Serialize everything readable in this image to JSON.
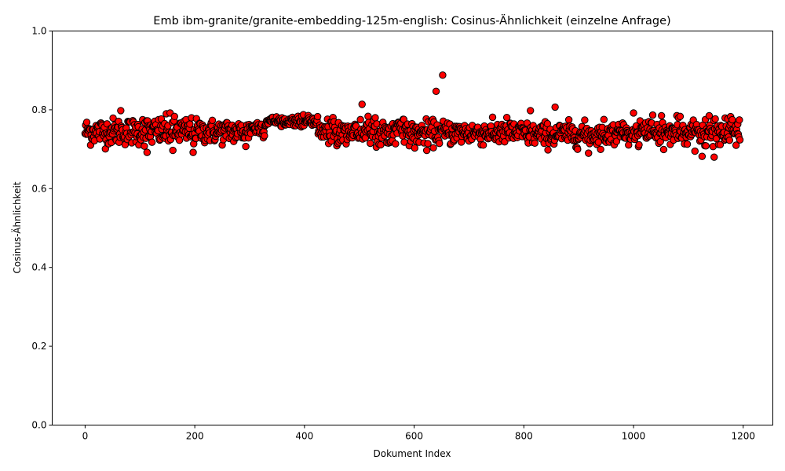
{
  "chart_data": {
    "type": "scatter",
    "title": "Emb ibm-granite/granite-embedding-125m-english: Cosinus-Ähnlichkeit (einzelne Anfrage)",
    "xlabel": "Dokument Index",
    "ylabel": "Cosinus-Ähnlichkeit",
    "xlim": [
      -60,
      1254
    ],
    "ylim": [
      0.0,
      1.0
    ],
    "x_ticks": [
      0,
      200,
      400,
      600,
      800,
      1000,
      1200
    ],
    "y_ticks": [
      0.0,
      0.2,
      0.4,
      0.6,
      0.8,
      1.0
    ],
    "x_tick_labels": [
      "0",
      "200",
      "400",
      "600",
      "800",
      "1000",
      "1200"
    ],
    "y_tick_labels": [
      "0.0",
      "0.2",
      "0.4",
      "0.6",
      "0.8",
      "1.0"
    ],
    "grid": false,
    "marker_face_color": "#ff0000",
    "marker_edge_color": "#000000",
    "n_points": 1195,
    "segments": [
      {
        "x_start": 0,
        "x_end": 100,
        "mean": 0.745,
        "spread": 0.028
      },
      {
        "x_start": 100,
        "x_end": 200,
        "mean": 0.745,
        "spread": 0.03
      },
      {
        "x_start": 200,
        "x_end": 300,
        "mean": 0.745,
        "spread": 0.025
      },
      {
        "x_start": 300,
        "x_end": 330,
        "mean": 0.755,
        "spread": 0.02
      },
      {
        "x_start": 330,
        "x_end": 425,
        "mean": 0.772,
        "spread": 0.01
      },
      {
        "x_start": 425,
        "x_end": 600,
        "mean": 0.745,
        "spread": 0.025
      },
      {
        "x_start": 600,
        "x_end": 800,
        "mean": 0.742,
        "spread": 0.025
      },
      {
        "x_start": 800,
        "x_end": 1000,
        "mean": 0.738,
        "spread": 0.025
      },
      {
        "x_start": 1000,
        "x_end": 1195,
        "mean": 0.742,
        "spread": 0.028
      }
    ],
    "notable_points": [
      {
        "x": 65,
        "y": 0.798
      },
      {
        "x": 105,
        "y": 0.775
      },
      {
        "x": 113,
        "y": 0.692
      },
      {
        "x": 155,
        "y": 0.792
      },
      {
        "x": 160,
        "y": 0.697
      },
      {
        "x": 197,
        "y": 0.692
      },
      {
        "x": 293,
        "y": 0.707
      },
      {
        "x": 505,
        "y": 0.814
      },
      {
        "x": 623,
        "y": 0.697
      },
      {
        "x": 640,
        "y": 0.847
      },
      {
        "x": 652,
        "y": 0.888
      },
      {
        "x": 812,
        "y": 0.798
      },
      {
        "x": 857,
        "y": 0.807
      },
      {
        "x": 918,
        "y": 0.69
      },
      {
        "x": 1000,
        "y": 0.792
      },
      {
        "x": 1112,
        "y": 0.695
      },
      {
        "x": 1125,
        "y": 0.682
      },
      {
        "x": 1147,
        "y": 0.68
      }
    ]
  }
}
